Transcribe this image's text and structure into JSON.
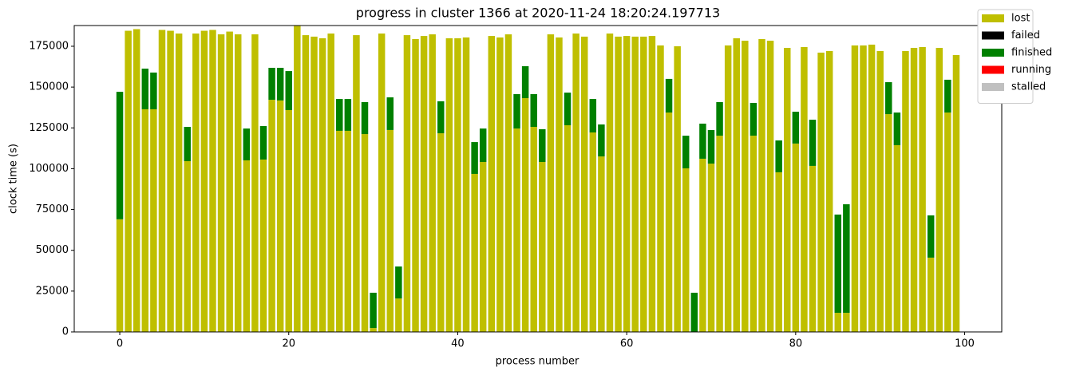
{
  "chart_data": {
    "type": "stacked_bar",
    "title": "progress in cluster 1366 at 2020-11-24 18:20:24.197713",
    "xlabel": "process number",
    "ylabel": "clock time (s)",
    "x": [
      0,
      1,
      2,
      3,
      4,
      5,
      6,
      7,
      8,
      9,
      10,
      11,
      12,
      13,
      14,
      15,
      16,
      17,
      18,
      19,
      20,
      21,
      22,
      23,
      24,
      25,
      26,
      27,
      28,
      29,
      30,
      31,
      32,
      33,
      34,
      35,
      36,
      37,
      38,
      39,
      40,
      41,
      42,
      43,
      44,
      45,
      46,
      47,
      48,
      49,
      50,
      51,
      52,
      53,
      54,
      55,
      56,
      57,
      58,
      59,
      60,
      61,
      62,
      63,
      64,
      65,
      66,
      67,
      68,
      69,
      70,
      71,
      72,
      73,
      74,
      75,
      76,
      77,
      78,
      79,
      80,
      81,
      82,
      83,
      84,
      85,
      86,
      87,
      88,
      89,
      90,
      91,
      92,
      93,
      94,
      95,
      96,
      97,
      98,
      99
    ],
    "xlim": [
      -5.39,
      104.39
    ],
    "xticks": [
      0,
      20,
      40,
      60,
      80,
      100
    ],
    "ylim": [
      0,
      187700
    ],
    "yticks": [
      0,
      25000,
      50000,
      75000,
      100000,
      125000,
      150000,
      175000
    ],
    "legend": "upper right",
    "series": [
      {
        "name": "lost",
        "color": "#bfbf00",
        "values": [
          69000,
          184500,
          185500,
          136400,
          136400,
          185000,
          184500,
          182800,
          104600,
          182800,
          184500,
          185000,
          182300,
          184000,
          182300,
          105100,
          182300,
          105600,
          142200,
          141800,
          135900,
          187500,
          181800,
          180900,
          179900,
          182800,
          123200,
          123200,
          181800,
          121200,
          2400,
          182800,
          123700,
          20500,
          181800,
          179400,
          181300,
          182300,
          121700,
          179900,
          179900,
          180400,
          96800,
          104100,
          181300,
          180400,
          182300,
          124600,
          143200,
          125600,
          104100,
          182300,
          180400,
          126600,
          182800,
          180900,
          122200,
          107500,
          182800,
          180900,
          181300,
          180900,
          180900,
          181300,
          175500,
          134400,
          175000,
          100200,
          0,
          106100,
          103100,
          120200,
          175500,
          179900,
          178400,
          120200,
          179400,
          178400,
          97800,
          174000,
          115400,
          174500,
          101700,
          171100,
          172100,
          11700,
          11700,
          175500,
          175500,
          176000,
          172100,
          133400,
          114400,
          172100,
          174000,
          174500,
          45500,
          174000,
          134400,
          169600
        ]
      },
      {
        "name": "failed",
        "color": "#000000",
        "values": [
          0,
          0,
          0,
          0,
          0,
          0,
          0,
          0,
          0,
          0,
          0,
          0,
          0,
          0,
          0,
          0,
          0,
          0,
          0,
          0,
          0,
          0,
          0,
          0,
          0,
          0,
          0,
          0,
          0,
          0,
          0,
          0,
          0,
          0,
          0,
          0,
          0,
          0,
          0,
          0,
          0,
          0,
          0,
          0,
          0,
          0,
          0,
          0,
          0,
          0,
          0,
          0,
          0,
          0,
          0,
          0,
          0,
          0,
          0,
          0,
          0,
          0,
          0,
          0,
          0,
          0,
          0,
          0,
          0,
          0,
          0,
          0,
          0,
          0,
          0,
          0,
          0,
          0,
          0,
          0,
          0,
          0,
          0,
          0,
          0,
          0,
          0,
          0,
          0,
          0,
          0,
          0,
          0,
          0,
          0,
          0,
          0,
          0,
          0,
          0
        ]
      },
      {
        "name": "finished",
        "color": "#008000",
        "values": [
          78100,
          0,
          0,
          24900,
          22500,
          0,
          0,
          0,
          21000,
          0,
          0,
          0,
          0,
          0,
          0,
          19500,
          0,
          20500,
          19600,
          20000,
          23900,
          0,
          0,
          0,
          0,
          0,
          19500,
          19500,
          0,
          19600,
          21600,
          0,
          20000,
          19600,
          0,
          0,
          0,
          0,
          19600,
          0,
          0,
          0,
          19500,
          20500,
          0,
          0,
          0,
          21100,
          19600,
          20100,
          20100,
          0,
          0,
          20000,
          0,
          0,
          20500,
          19600,
          0,
          0,
          0,
          0,
          0,
          0,
          0,
          20600,
          0,
          20000,
          24000,
          21500,
          20600,
          20600,
          0,
          0,
          0,
          20100,
          0,
          0,
          19500,
          0,
          19500,
          0,
          28300,
          0,
          0,
          60200,
          66500,
          0,
          0,
          0,
          0,
          19600,
          20000,
          0,
          0,
          0,
          25900,
          0,
          20100,
          0
        ]
      },
      {
        "name": "running",
        "color": "#ff0000",
        "values": [
          0,
          0,
          0,
          0,
          0,
          0,
          0,
          0,
          0,
          0,
          0,
          0,
          0,
          0,
          0,
          0,
          0,
          0,
          0,
          0,
          0,
          0,
          0,
          0,
          0,
          0,
          0,
          0,
          0,
          0,
          0,
          0,
          0,
          0,
          0,
          0,
          0,
          0,
          0,
          0,
          0,
          0,
          0,
          0,
          0,
          0,
          0,
          0,
          0,
          0,
          0,
          0,
          0,
          0,
          0,
          0,
          0,
          0,
          0,
          0,
          0,
          0,
          0,
          0,
          0,
          0,
          0,
          0,
          0,
          0,
          0,
          0,
          0,
          0,
          0,
          0,
          0,
          0,
          0,
          0,
          0,
          0,
          0,
          0,
          0,
          0,
          0,
          0,
          0,
          0,
          0,
          0,
          0,
          0,
          0,
          0,
          0,
          0,
          0,
          0
        ]
      },
      {
        "name": "stalled",
        "color": "#c0c0c0",
        "values": [
          0,
          0,
          0,
          0,
          0,
          0,
          0,
          0,
          0,
          0,
          0,
          0,
          0,
          0,
          0,
          0,
          0,
          0,
          0,
          0,
          0,
          0,
          0,
          0,
          0,
          0,
          0,
          0,
          0,
          0,
          0,
          0,
          0,
          0,
          0,
          0,
          0,
          0,
          0,
          0,
          0,
          0,
          0,
          0,
          0,
          0,
          0,
          0,
          0,
          0,
          0,
          0,
          0,
          0,
          0,
          0,
          0,
          0,
          0,
          0,
          0,
          0,
          0,
          0,
          0,
          0,
          0,
          0,
          0,
          0,
          0,
          0,
          0,
          0,
          0,
          0,
          0,
          0,
          0,
          0,
          0,
          0,
          0,
          0,
          0,
          0,
          0,
          0,
          0,
          0,
          0,
          0,
          0,
          0,
          0,
          0,
          0,
          0,
          0,
          0
        ]
      }
    ]
  }
}
